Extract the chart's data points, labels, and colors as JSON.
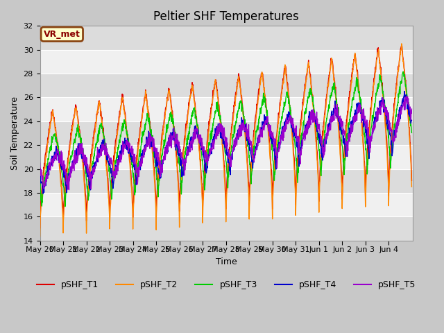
{
  "title": "Peltier SHF Temperatures",
  "xlabel": "Time",
  "ylabel": "Soil Temperature",
  "ylim": [
    14,
    32
  ],
  "yticks": [
    14,
    16,
    18,
    20,
    22,
    24,
    26,
    28,
    30,
    32
  ],
  "series": [
    "pSHF_T1",
    "pSHF_T2",
    "pSHF_T3",
    "pSHF_T4",
    "pSHF_T5"
  ],
  "colors": [
    "#dd0000",
    "#ff8800",
    "#00cc00",
    "#0000cc",
    "#9900cc"
  ],
  "annotation_text": "VR_met",
  "annotation_bg": "#ffffcc",
  "annotation_border": "#8b4513",
  "fig_bg": "#c8c8c8",
  "plot_bg_light": "#f0f0f0",
  "plot_bg_dark": "#dcdcdc",
  "title_fontsize": 12,
  "axis_fontsize": 9,
  "tick_fontsize": 8,
  "legend_fontsize": 9
}
